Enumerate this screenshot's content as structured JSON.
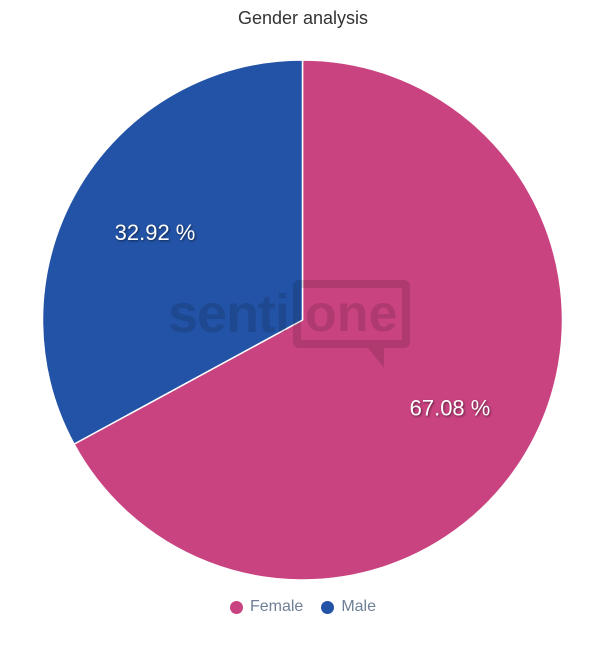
{
  "watermark": {
    "prefix": "senti",
    "suffix": "one"
  },
  "chart_data": {
    "type": "pie",
    "title": "Gender analysis",
    "slices": [
      {
        "label": "Female",
        "value": 67.08,
        "data_label": "67.08 %",
        "color": "#c94380"
      },
      {
        "label": "Male",
        "value": 32.92,
        "data_label": "32.92 %",
        "color": "#2353a6"
      }
    ],
    "start_angle_deg": 0,
    "direction": "clockwise",
    "legend_position": "bottom",
    "data_label_color": "#ffffff",
    "slice_border_color": "#ffffff",
    "title_color": "#333333",
    "legend_text_color": "#6e7f96",
    "background_color": "#ffffff"
  }
}
